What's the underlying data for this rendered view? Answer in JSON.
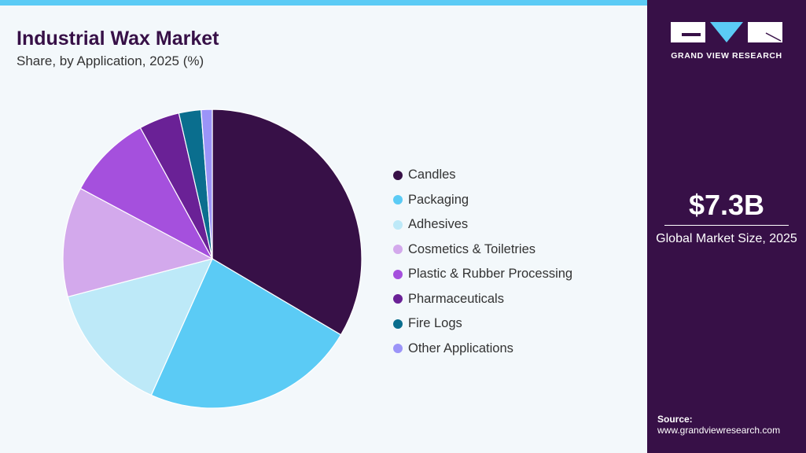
{
  "chart_data": {
    "type": "pie",
    "title": "Industrial Wax Market",
    "subtitle": "Share, by Application, 2025 (%)",
    "categories": [
      "Candles",
      "Packaging",
      "Adhesives",
      "Cosmetics & Toiletries",
      "Plastic & Rubber Processing",
      "Pharmaceuticals",
      "Fire Logs",
      "Other Applications"
    ],
    "values": [
      33.5,
      23.2,
      14.2,
      11.9,
      9.2,
      4.4,
      2.4,
      1.2
    ],
    "colors": [
      "#371047",
      "#5bcbf5",
      "#bde9f8",
      "#d3a9ec",
      "#a550dd",
      "#6a2196",
      "#0a6e8e",
      "#9b94f8"
    ],
    "legend_position": "right"
  },
  "sidebar": {
    "brand": "GRAND VIEW RESEARCH",
    "market_size": "$7.3B",
    "market_label": "Global Market Size, 2025",
    "source_label": "Source:",
    "source_url": "www.grandviewresearch.com"
  }
}
